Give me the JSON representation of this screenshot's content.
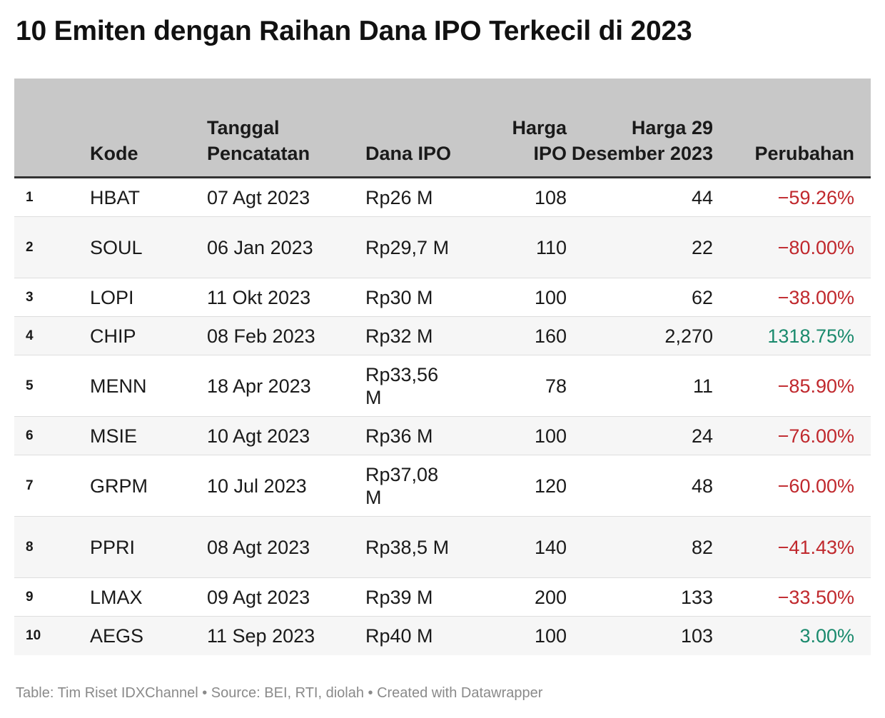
{
  "title": "10 Emiten dengan Raihan Dana IPO Terkecil di 2023",
  "headers": {
    "rank": "",
    "code": "Kode",
    "date": "Tanggal Pencatatan",
    "dana": "Dana IPO",
    "harga_ipo": "Harga IPO",
    "harga_29": "Harga 29 Desember 2023",
    "change": "Perubahan"
  },
  "colors": {
    "negative": "#c0282d",
    "positive": "#1a8a6d",
    "header_bg": "#c8c8c8"
  },
  "footer": "Table: Tim Riset IDXChannel • Source: BEI, RTI, diolah • Created with Datawrapper",
  "chart_data": {
    "type": "table",
    "columns": [
      "",
      "Kode",
      "Tanggal Pencatatan",
      "Dana IPO",
      "Harga IPO",
      "Harga 29 Desember 2023",
      "Perubahan"
    ],
    "rows": [
      {
        "rank": "1",
        "code": "HBAT",
        "date": "07 Agt 2023",
        "dana": "Rp26 M",
        "harga_ipo": "108",
        "harga_29": "44",
        "change": "−59.26%",
        "sign": "neg"
      },
      {
        "rank": "2",
        "code": "SOUL",
        "date": "06 Jan 2023",
        "dana": "Rp29,7 M",
        "harga_ipo": "110",
        "harga_29": "22",
        "change": "−80.00%",
        "sign": "neg"
      },
      {
        "rank": "3",
        "code": "LOPI",
        "date": "11 Okt 2023",
        "dana": "Rp30 M",
        "harga_ipo": "100",
        "harga_29": "62",
        "change": "−38.00%",
        "sign": "neg"
      },
      {
        "rank": "4",
        "code": "CHIP",
        "date": "08 Feb 2023",
        "dana": "Rp32 M",
        "harga_ipo": "160",
        "harga_29": "2,270",
        "change": "1318.75%",
        "sign": "pos"
      },
      {
        "rank": "5",
        "code": "MENN",
        "date": "18 Apr 2023",
        "dana": "Rp33,56 M",
        "harga_ipo": "78",
        "harga_29": "11",
        "change": "−85.90%",
        "sign": "neg"
      },
      {
        "rank": "6",
        "code": "MSIE",
        "date": "10 Agt 2023",
        "dana": "Rp36 M",
        "harga_ipo": "100",
        "harga_29": "24",
        "change": "−76.00%",
        "sign": "neg"
      },
      {
        "rank": "7",
        "code": "GRPM",
        "date": "10 Jul 2023",
        "dana": "Rp37,08 M",
        "harga_ipo": "120",
        "harga_29": "48",
        "change": "−60.00%",
        "sign": "neg"
      },
      {
        "rank": "8",
        "code": "PPRI",
        "date": "08 Agt 2023",
        "dana": "Rp38,5 M",
        "harga_ipo": "140",
        "harga_29": "82",
        "change": "−41.43%",
        "sign": "neg"
      },
      {
        "rank": "9",
        "code": "LMAX",
        "date": "09 Agt 2023",
        "dana": "Rp39 M",
        "harga_ipo": "200",
        "harga_29": "133",
        "change": "−33.50%",
        "sign": "neg"
      },
      {
        "rank": "10",
        "code": "AEGS",
        "date": "11 Sep 2023",
        "dana": "Rp40 M",
        "harga_ipo": "100",
        "harga_29": "103",
        "change": "3.00%",
        "sign": "pos"
      }
    ]
  }
}
